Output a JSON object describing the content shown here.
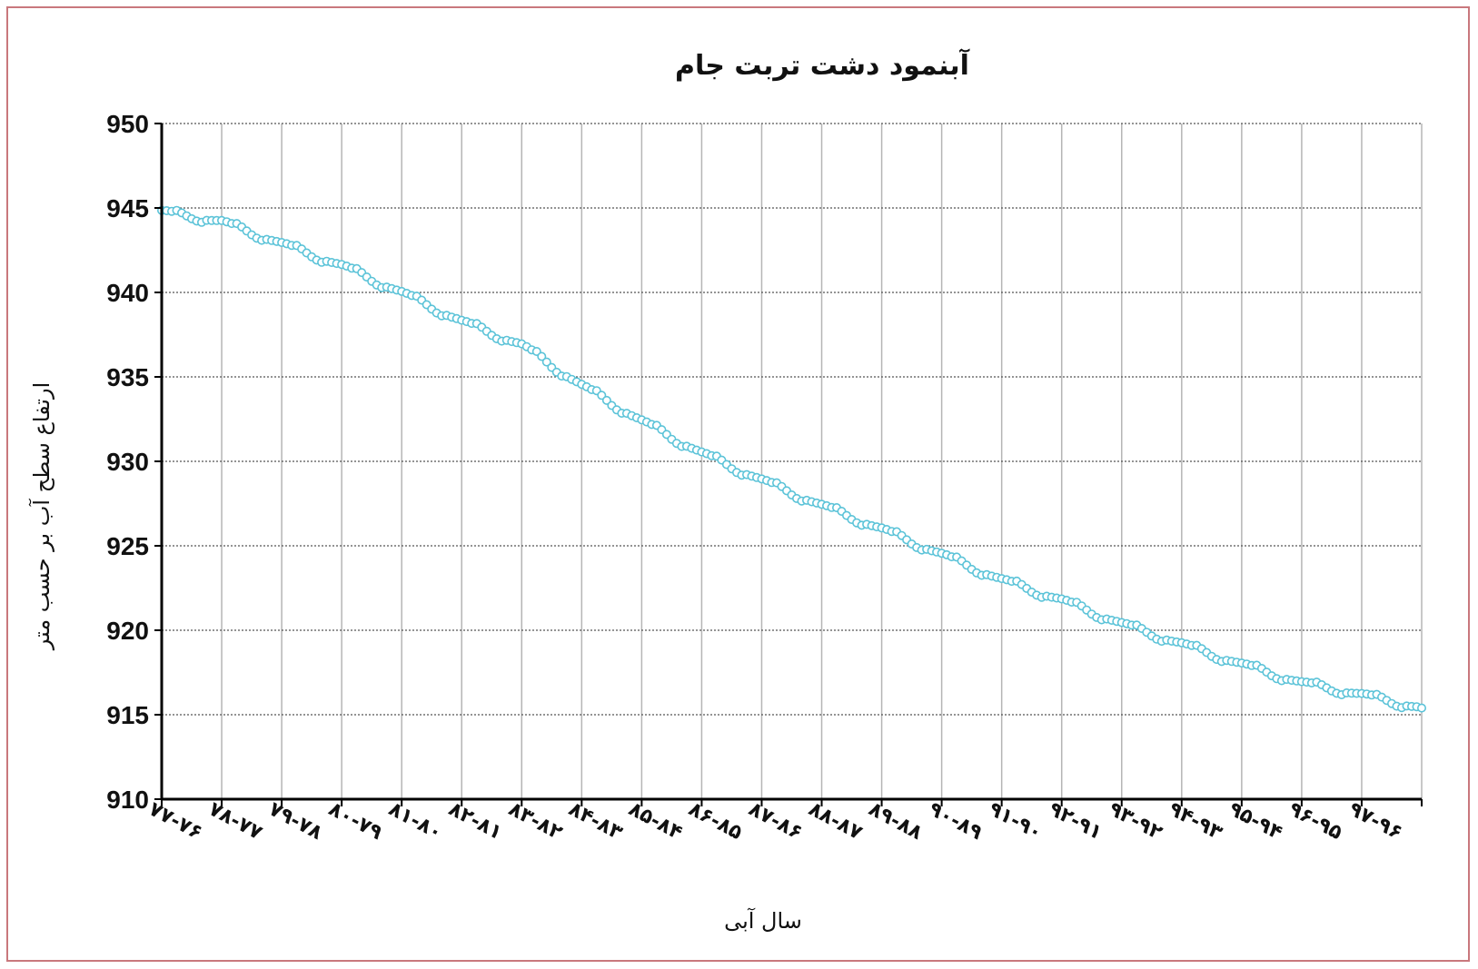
{
  "colors": {
    "series": "#5bc3d8",
    "grid_h": "#555555",
    "grid_v": "#b5b5b5",
    "axis": "#000000",
    "frame": "#c9787d"
  },
  "chart_data": {
    "type": "line",
    "title": "آبنمود دشت تربت جام",
    "xlabel": "سال آبی",
    "ylabel": "ارتفاع سطح آب بر حسب متر",
    "ylim": [
      910,
      950
    ],
    "yticks": [
      "950",
      "945",
      "940",
      "935",
      "930",
      "925",
      "920",
      "915",
      "910"
    ],
    "categories": [
      "۷۷-۷۶",
      "۷۸-۷۷",
      "۷۹-۷۸",
      "۸۰-۷۹",
      "۸۱-۸۰",
      "۸۲-۸۱",
      "۸۳-۸۲",
      "۸۴-۸۳",
      "۸۵-۸۴",
      "۸۶-۸۵",
      "۸۷-۸۶",
      "۸۸-۸۷",
      "۸۹-۸۸",
      "۹۰-۸۹",
      "۹۱-۹۰",
      "۹۲-۹۱",
      "۹۳-۹۲",
      "۹۴-۹۳",
      "۹۵-۹۴",
      "۹۶-۹۵",
      "۹۷-۹۶"
    ],
    "grid": true,
    "legend": "none",
    "marker": "hollow-circle",
    "points_per_year": 12,
    "series": [
      {
        "values_start_of_year": [
          944.8,
          944.2,
          942.9,
          941.6,
          940.0,
          938.3,
          936.9,
          934.5,
          932.4,
          930.5,
          928.9,
          927.4,
          926.0,
          924.5,
          923.0,
          921.8,
          920.4,
          919.2,
          918.0,
          916.9,
          916.2,
          915.4
        ]
      }
    ]
  }
}
